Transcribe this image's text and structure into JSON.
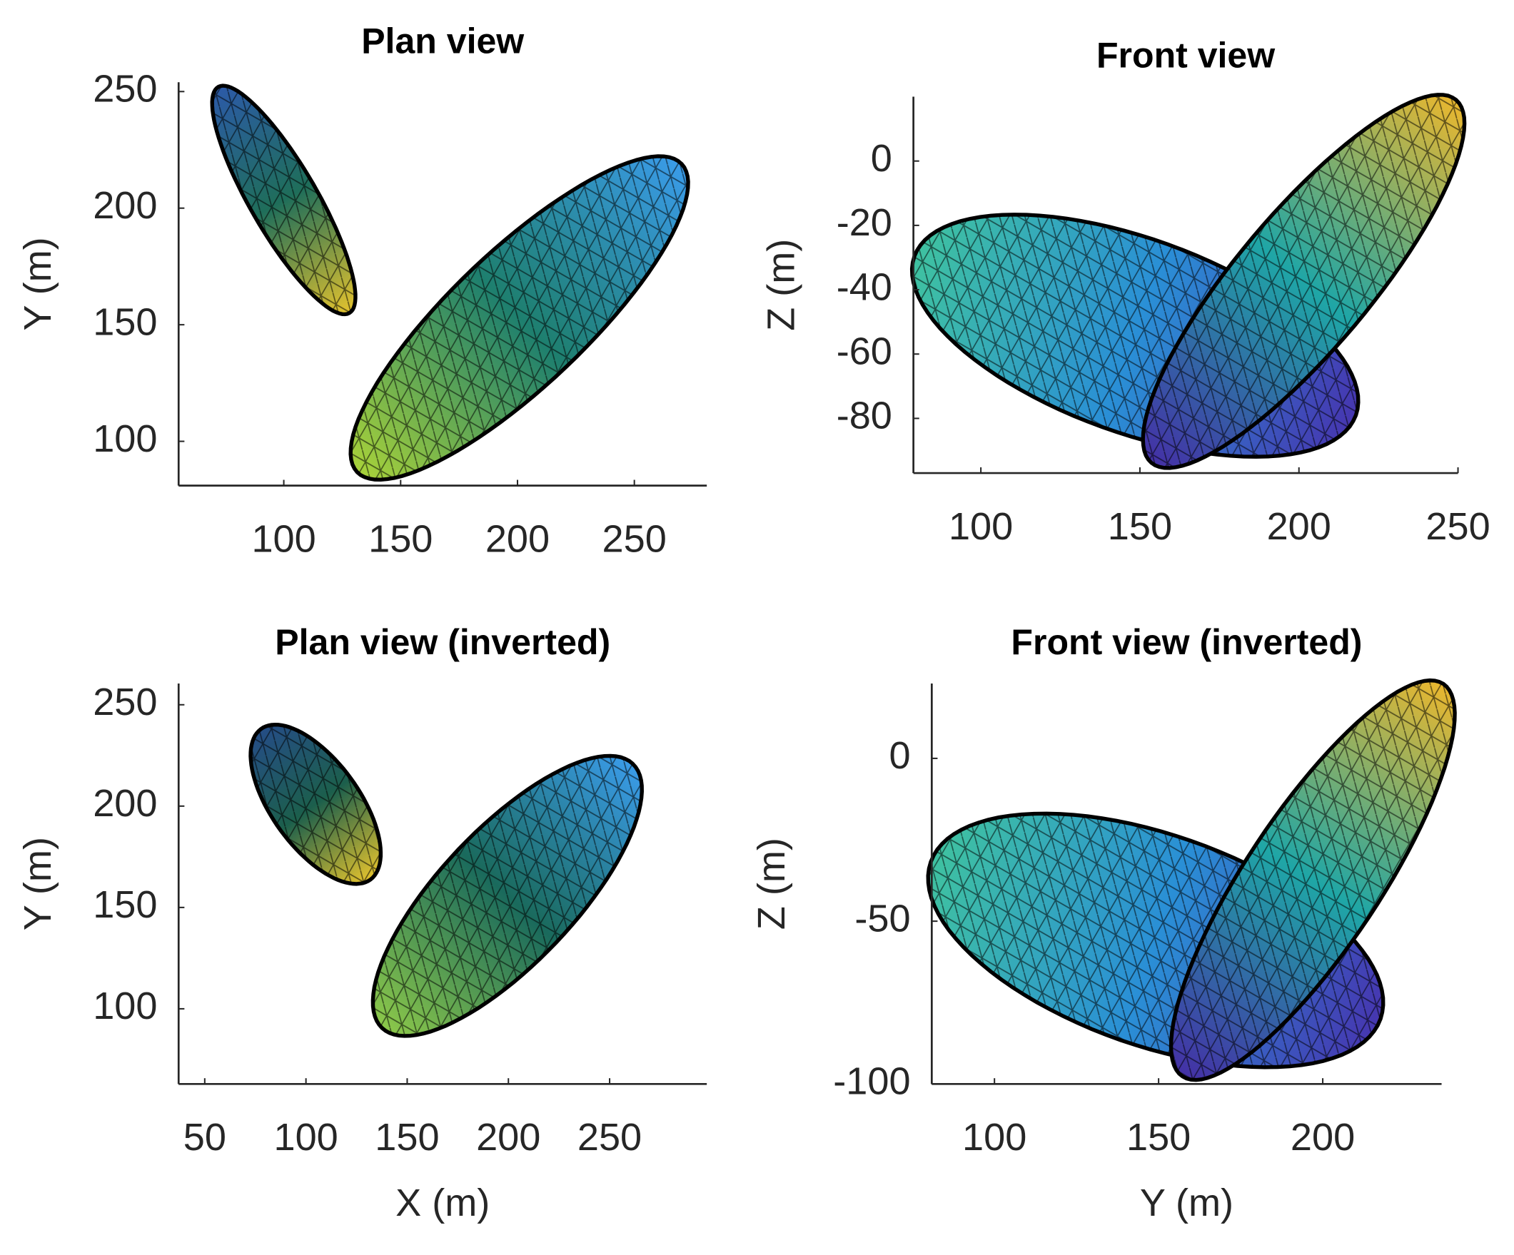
{
  "chart_data": [
    {
      "type": "mesh",
      "title": "Plan view",
      "ylabel": "Y (m)",
      "xlim": [
        55,
        281
      ],
      "xticks": [
        100,
        150,
        200,
        250
      ],
      "ylim": [
        81,
        254
      ],
      "yticks": [
        100,
        150,
        200,
        250
      ],
      "shapes": [
        {
          "center": [
            100,
            203.5
          ],
          "major": [
            -28,
            48.5
          ],
          "minor": [
            12.5,
            7
          ],
          "colors": [
            "#2c5aa8",
            "#1f6e5a",
            "#e2c22e"
          ]
        },
        {
          "center": [
            200.8,
            152.9
          ],
          "major": [
            69.4,
            66.1
          ],
          "minor": [
            -20,
            21
          ],
          "colors": [
            "#3a9be8",
            "#1e7f6e",
            "#a8d23a"
          ]
        }
      ]
    },
    {
      "type": "mesh",
      "title": "Front view",
      "ylabel": "Z (m)",
      "xlim": [
        78.8,
        250
      ],
      "xticks": [
        100,
        150,
        200,
        250
      ],
      "ylim": [
        -97,
        20
      ],
      "yticks": [
        -80,
        -60,
        -40,
        -20,
        0
      ],
      "shapes": [
        {
          "center": [
            148.5,
            -54.3
          ],
          "major": [
            69.4,
            -24.7
          ],
          "minor": [
            10.3,
            28.4
          ],
          "colors": [
            "#4636b0",
            "#2a8fd6",
            "#3fc2a0"
          ]
        },
        {
          "center": [
            201.5,
            -37.4
          ],
          "major": [
            47.9,
            56.4
          ],
          "minor": [
            16.1,
            -13.6
          ],
          "colors": [
            "#eab72e",
            "#1fa6a6",
            "#4430a6"
          ]
        }
      ]
    },
    {
      "type": "mesh",
      "title": "Plan view (inverted)",
      "xlabel": "X (m)",
      "ylabel": "Y (m)",
      "xlim": [
        37.1,
        298
      ],
      "xticks": [
        50,
        100,
        150,
        200,
        250
      ],
      "ylim": [
        62.9,
        260.5
      ],
      "yticks": [
        100,
        150,
        200,
        250
      ],
      "shapes": [
        {
          "center": [
            104.8,
            200.9
          ],
          "major": [
            -27.1,
            37.1
          ],
          "minor": [
            17.3,
            12.9
          ],
          "colors": [
            "#254d86",
            "#1c5f4c",
            "#e2c22e"
          ]
        },
        {
          "center": [
            199.5,
            155.7
          ],
          "major": [
            61.9,
            65.2
          ],
          "minor": [
            24.2,
            -22.9
          ],
          "colors": [
            "#3a9be8",
            "#1a6a5c",
            "#8cc84a"
          ]
        }
      ]
    },
    {
      "type": "mesh",
      "title": "Front view (inverted)",
      "xlabel": "Y (m)",
      "ylabel": "Z (m)",
      "xlim": [
        80.9,
        236.2
      ],
      "xticks": [
        100,
        150,
        200
      ],
      "ylim": [
        -100,
        23
      ],
      "yticks": [
        -100,
        -50,
        0
      ],
      "shapes": [
        {
          "center": [
            149.1,
            -55.9
          ],
          "major": [
            68.5,
            -24.1
          ],
          "minor": [
            10.7,
            30.6
          ],
          "colors": [
            "#4636b0",
            "#2a8fd6",
            "#3fc2a0"
          ]
        },
        {
          "center": [
            197,
            -37.4
          ],
          "major": [
            39.7,
            60.3
          ],
          "minor": [
            17.1,
            -11.3
          ],
          "colors": [
            "#eab72e",
            "#1fa6a6",
            "#4430a6"
          ]
        }
      ]
    }
  ]
}
